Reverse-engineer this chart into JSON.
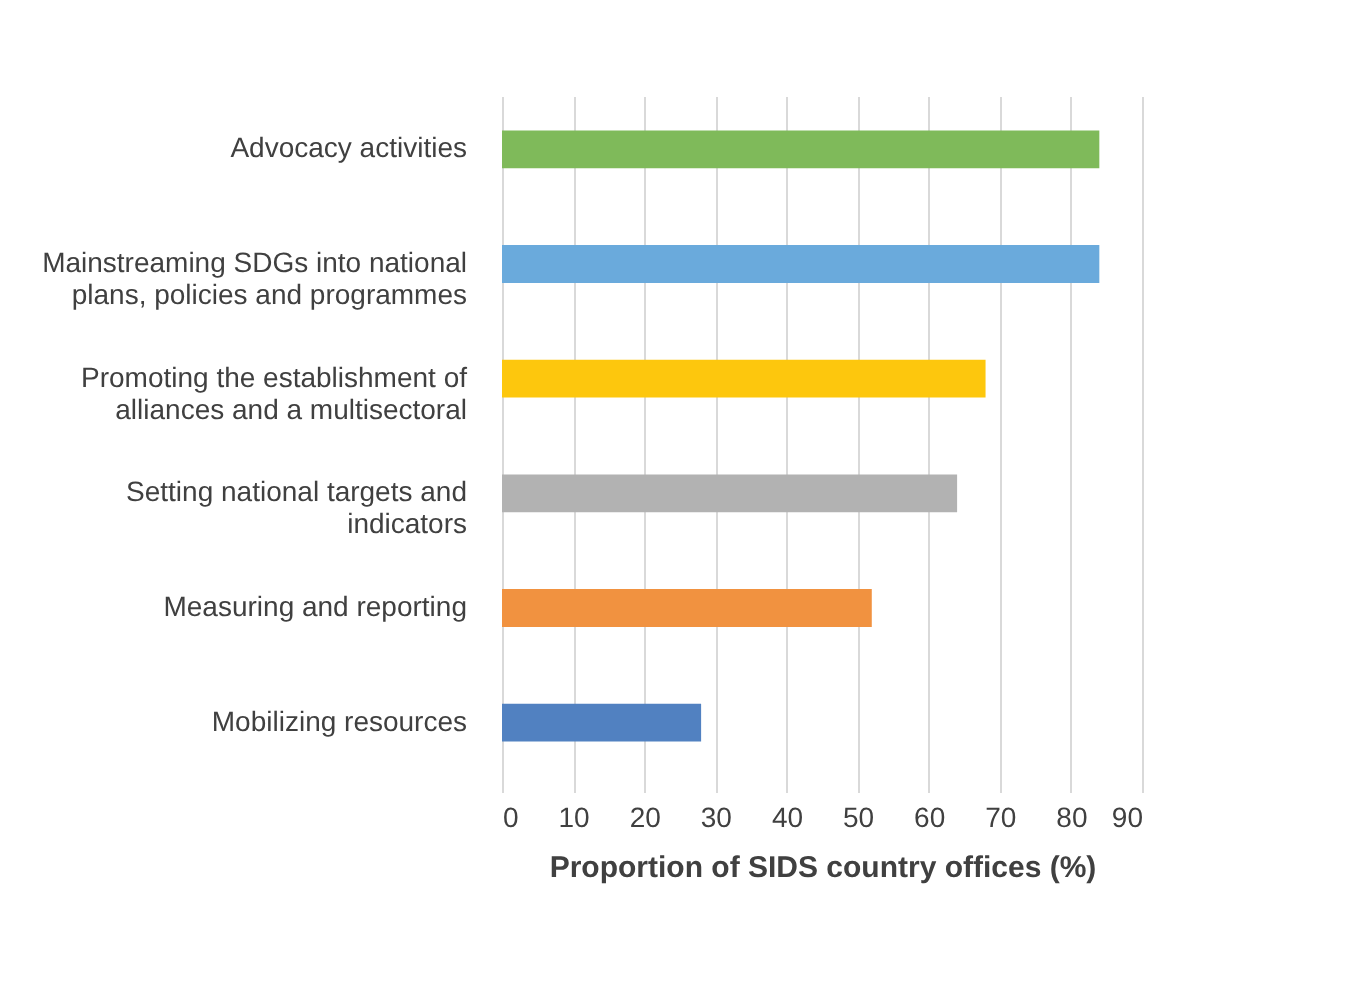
{
  "chart_data": {
    "type": "bar",
    "orientation": "horizontal",
    "xlabel": "Proportion of SIDS country offices (%)",
    "categories": [
      "Advocacy activities",
      "Mainstreaming SDGs into national plans, policies and programmes",
      "Promoting the establishment of alliances and a multisectoral",
      "Setting national targets and indicators",
      "Measuring and reporting",
      "Mobilizing resources"
    ],
    "values": [
      84,
      84,
      68,
      64,
      52,
      28
    ],
    "colors": [
      "#7fba5a",
      "#6aaadc",
      "#fdc70d",
      "#b2b2b2",
      "#f19240",
      "#5181c1"
    ],
    "xlim": [
      0,
      90
    ],
    "xticks": [
      0,
      10,
      20,
      30,
      40,
      50,
      60,
      70,
      80,
      90
    ],
    "grid": "x"
  }
}
